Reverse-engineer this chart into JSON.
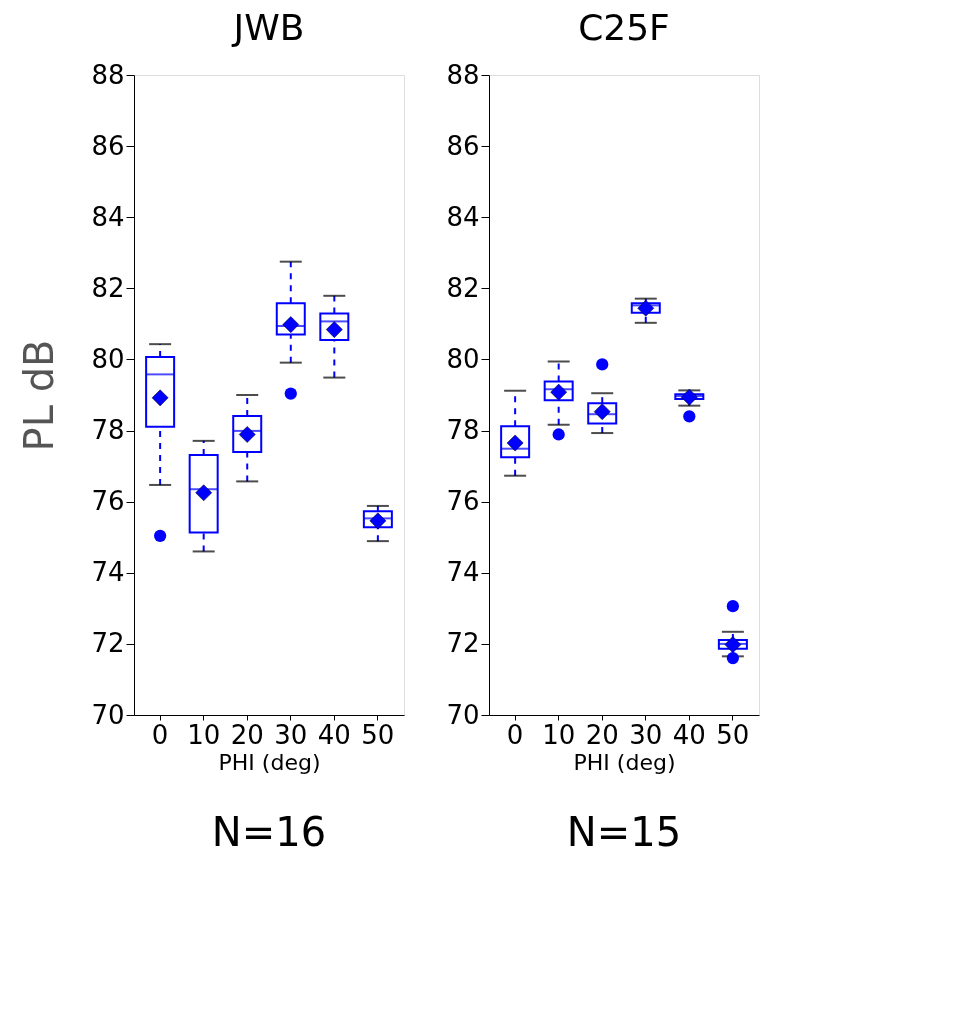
{
  "chart_data": [
    {
      "type": "box",
      "title": "JWB",
      "xlabel": "PHI (deg)",
      "ylabel": "PL dB",
      "categories": [
        "0",
        "10",
        "20",
        "30",
        "40",
        "50"
      ],
      "ylim": [
        70,
        88
      ],
      "yticks": [
        70,
        72,
        74,
        76,
        78,
        80,
        82,
        84,
        86,
        88
      ],
      "grid": false,
      "annotations": [
        "N=16"
      ],
      "series": [
        {
          "color": "#0000ff",
          "boxes": [
            {
              "low": 76.47,
              "q1": 78.11,
              "median": 79.58,
              "q3": 80.07,
              "high": 80.43,
              "mean": 78.92,
              "outliers": [
                75.04
              ]
            },
            {
              "low": 74.6,
              "q1": 75.13,
              "median": 76.35,
              "q3": 77.31,
              "high": 77.71,
              "mean": 76.25
            },
            {
              "low": 76.57,
              "q1": 77.4,
              "median": 77.99,
              "q3": 78.41,
              "high": 79.0,
              "mean": 77.89
            },
            {
              "low": 79.91,
              "q1": 80.7,
              "median": 80.94,
              "q3": 81.58,
              "high": 82.75,
              "mean": 80.98,
              "outliers": [
                79.04
              ]
            },
            {
              "low": 79.49,
              "q1": 80.55,
              "median": 81.07,
              "q3": 81.29,
              "high": 81.79,
              "mean": 80.84
            },
            {
              "low": 74.89,
              "q1": 75.28,
              "median": 75.53,
              "q3": 75.73,
              "high": 75.88,
              "mean": 75.46
            }
          ]
        }
      ]
    },
    {
      "type": "box",
      "title": "C25F",
      "xlabel": "PHI (deg)",
      "categories": [
        "0",
        "10",
        "20",
        "30",
        "40",
        "50"
      ],
      "ylim": [
        70,
        88
      ],
      "yticks": [
        70,
        72,
        74,
        76,
        78,
        80,
        82,
        84,
        86,
        88
      ],
      "grid": false,
      "annotations": [
        "N=15"
      ],
      "series": [
        {
          "color": "#0000ff",
          "boxes": [
            {
              "low": 76.73,
              "q1": 77.25,
              "median": 77.49,
              "q3": 78.12,
              "high": 79.12,
              "mean": 77.65
            },
            {
              "low": 78.16,
              "q1": 78.85,
              "median": 79.16,
              "q3": 79.38,
              "high": 79.94,
              "mean": 79.08,
              "outliers": [
                77.89
              ]
            },
            {
              "low": 77.93,
              "q1": 78.2,
              "median": 78.46,
              "q3": 78.77,
              "high": 79.05,
              "mean": 78.53,
              "outliers": [
                79.86
              ]
            },
            {
              "low": 81.03,
              "q1": 81.31,
              "median": 81.52,
              "q3": 81.58,
              "high": 81.71,
              "mean": 81.44
            },
            {
              "low": 78.7,
              "q1": 78.89,
              "median": 78.97,
              "q3": 79.02,
              "high": 79.13,
              "mean": 78.94,
              "outliers": [
                78.4
              ]
            },
            {
              "low": 71.65,
              "q1": 71.86,
              "median": 72.0,
              "q3": 72.11,
              "high": 72.34,
              "mean": 71.98,
              "outliers": [
                73.06,
                71.6
              ]
            }
          ]
        }
      ]
    }
  ]
}
